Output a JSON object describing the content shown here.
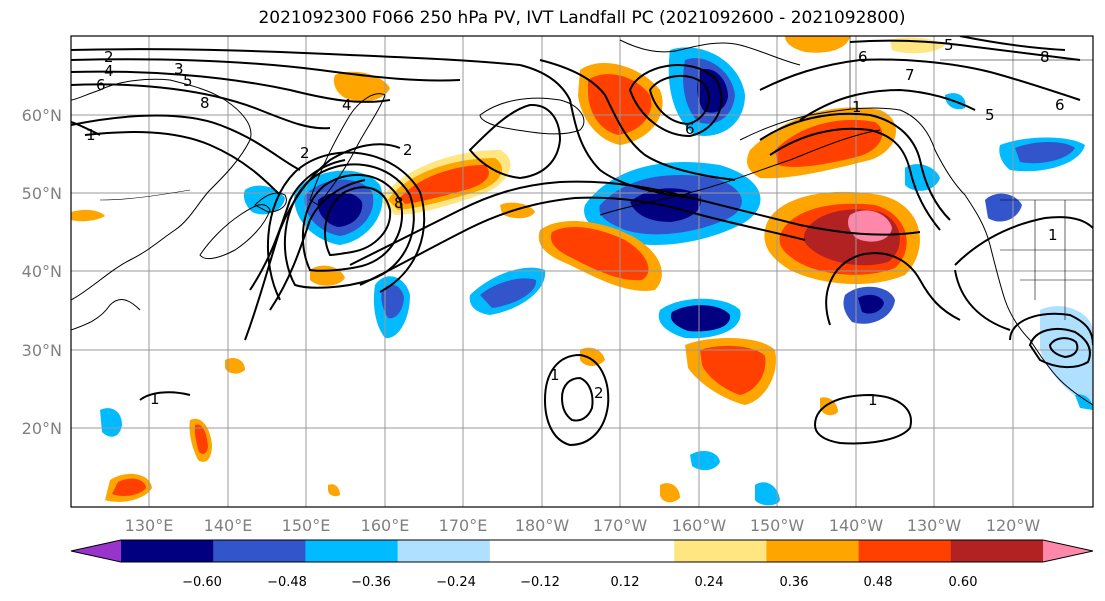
{
  "title": "2021092300 F066 250 hPa PV, IVT Landfall PC (2021092600 - 2021092800)",
  "lat_labels": [
    "60°N",
    "50°N",
    "40°N",
    "30°N",
    "20°N"
  ],
  "lon_labels": [
    "130°E",
    "140°E",
    "150°E",
    "160°E",
    "170°E",
    "180°W",
    "170°W",
    "160°W",
    "150°W",
    "140°W",
    "130°W",
    "120°W"
  ],
  "colorbar": {
    "colors": [
      "#9933cc",
      "#000080",
      "#3355cc",
      "#00bbff",
      "#b0e0ff",
      "#ffffff",
      "#ffffff",
      "#ffe680",
      "#ffa500",
      "#ff4000",
      "#b22222",
      "#ff88aa"
    ],
    "tick_labels": [
      "−0.60",
      "−0.48",
      "−0.36",
      "−0.24",
      "−0.12",
      "0.12",
      "0.24",
      "0.36",
      "0.48",
      "0.60"
    ]
  },
  "contour_labels": [
    "2",
    "4",
    "6",
    "3",
    "5",
    "8",
    "1",
    "2",
    "2",
    "4",
    "8",
    "6",
    "6",
    "5",
    "7",
    "8",
    "5",
    "6",
    "1",
    "1",
    "1",
    "1",
    "2",
    "1"
  ]
}
